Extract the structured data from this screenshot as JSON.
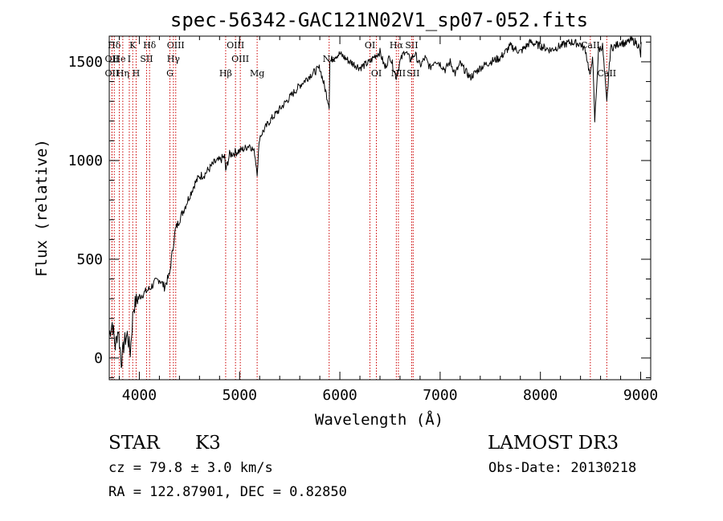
{
  "chart_data": {
    "type": "line",
    "title": "spec-56342-GAC121N02V1_sp07-052.fits",
    "xlabel": "Wavelength (Å)",
    "ylabel": "Flux (relative)",
    "xlim": [
      3700,
      9100
    ],
    "ylim": [
      -110,
      1630
    ],
    "x_ticks": [
      4000,
      5000,
      6000,
      7000,
      8000,
      9000
    ],
    "x_tick_labels": [
      "4000",
      "5000",
      "6000",
      "7000",
      "8000",
      "9000"
    ],
    "y_ticks": [
      0,
      500,
      1000,
      1500
    ],
    "y_tick_labels": [
      "0",
      "500",
      "1000",
      "1500"
    ],
    "series": [
      {
        "name": "flux",
        "x": [
          3700,
          3730,
          3760,
          3790,
          3820,
          3850,
          3880,
          3910,
          3940,
          3970,
          4000,
          4050,
          4100,
          4150,
          4200,
          4250,
          4300,
          4320,
          4340,
          4360,
          4400,
          4450,
          4500,
          4550,
          4600,
          4650,
          4700,
          4750,
          4800,
          4850,
          4861,
          4900,
          4950,
          5000,
          5050,
          5100,
          5150,
          5175,
          5200,
          5250,
          5300,
          5400,
          5500,
          5600,
          5700,
          5800,
          5893,
          5900,
          5950,
          6000,
          6100,
          6200,
          6300,
          6350,
          6400,
          6450,
          6500,
          6563,
          6600,
          6650,
          6700,
          6750,
          6800,
          6850,
          6900,
          6950,
          7000,
          7050,
          7100,
          7150,
          7200,
          7300,
          7400,
          7500,
          7600,
          7700,
          7800,
          7900,
          8000,
          8100,
          8200,
          8300,
          8400,
          8450,
          8498,
          8520,
          8542,
          8580,
          8620,
          8662,
          8700,
          8750,
          8800,
          8850,
          8900,
          8950,
          8980,
          9000,
          9005
        ],
        "y": [
          120,
          180,
          60,
          150,
          -20,
          80,
          120,
          30,
          250,
          290,
          310,
          330,
          350,
          380,
          400,
          360,
          420,
          500,
          580,
          650,
          700,
          760,
          820,
          880,
          920,
          930,
          960,
          990,
          1000,
          1020,
          950,
          1030,
          1040,
          1050,
          1060,
          1080,
          1040,
          940,
          1120,
          1160,
          1200,
          1260,
          1320,
          1380,
          1430,
          1470,
          1280,
          1500,
          1530,
          1540,
          1500,
          1470,
          1500,
          1530,
          1550,
          1470,
          1530,
          1420,
          1500,
          1560,
          1510,
          1540,
          1480,
          1520,
          1470,
          1510,
          1490,
          1460,
          1500,
          1440,
          1490,
          1420,
          1470,
          1500,
          1520,
          1580,
          1550,
          1600,
          1580,
          1560,
          1580,
          1600,
          1590,
          1560,
          1420,
          1540,
          1200,
          1560,
          1580,
          1290,
          1570,
          1580,
          1600,
          1590,
          1610,
          1600,
          1580,
          1530,
          1600
        ]
      }
    ],
    "line_markers": [
      {
        "label": "Hδ",
        "wave": 3750,
        "row": 1
      },
      {
        "label": "OII",
        "wave": 3727,
        "row": 2
      },
      {
        "label": "OII",
        "wave": 3727,
        "row": 3
      },
      {
        "label": "He",
        "wave": 3800,
        "row": 2
      },
      {
        "label": "Hη",
        "wave": 3835,
        "row": 3
      },
      {
        "label": "K",
        "wave": 3934,
        "row": 1
      },
      {
        "label": "I",
        "wave": 3900,
        "row": 2
      },
      {
        "label": "H",
        "wave": 3968,
        "row": 3
      },
      {
        "label": "SII",
        "wave": 4072,
        "row": 2
      },
      {
        "label": "Hδ",
        "wave": 4102,
        "row": 1
      },
      {
        "label": "OIII",
        "wave": 4363,
        "row": 1
      },
      {
        "label": "Hγ",
        "wave": 4340,
        "row": 2
      },
      {
        "label": "G",
        "wave": 4305,
        "row": 3
      },
      {
        "label": "OIII",
        "wave": 4959,
        "row": 1
      },
      {
        "label": "OIII",
        "wave": 5007,
        "row": 2
      },
      {
        "label": "Hβ",
        "wave": 4861,
        "row": 3
      },
      {
        "label": "Mg",
        "wave": 5175,
        "row": 3
      },
      {
        "label": "Na",
        "wave": 5893,
        "row": 2
      },
      {
        "label": "OI",
        "wave": 6300,
        "row": 1
      },
      {
        "label": "OI",
        "wave": 6364,
        "row": 3
      },
      {
        "label": "Hα",
        "wave": 6563,
        "row": 1
      },
      {
        "label": "SII",
        "wave": 6716,
        "row": 1
      },
      {
        "label": "NII",
        "wave": 6584,
        "row": 3
      },
      {
        "label": "SII",
        "wave": 6731,
        "row": 3
      },
      {
        "label": "CaII",
        "wave": 8498,
        "row": 1
      },
      {
        "label": "CaII",
        "wave": 8662,
        "row": 3
      }
    ]
  },
  "info": {
    "object_type": "STAR",
    "subclass": "K3",
    "redshift": "cz = 79.8 ± 3.0 km/s",
    "coords": "RA = 122.87901, DEC =    0.82850",
    "survey": "LAMOST DR3",
    "obs_date": "Obs-Date: 20130218"
  },
  "colors": {
    "spectrum": "#000000",
    "marker_line": "#cc0000",
    "frame": "#000000"
  }
}
